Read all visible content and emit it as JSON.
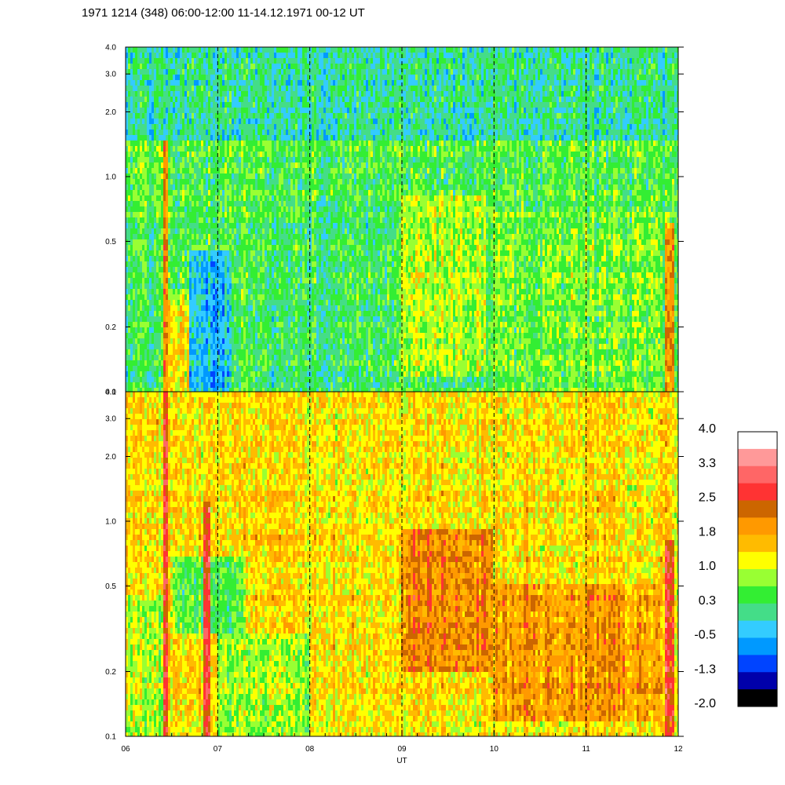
{
  "chart_data": {
    "type": "heatmap",
    "title": "1971 1214 (348) 06:00-12:00 11-14.12.1971  00-12  UT",
    "xlabel": "UT",
    "x_ticks": [
      "06",
      "07",
      "08",
      "09",
      "10",
      "11",
      "12"
    ],
    "xlim": [
      6,
      12
    ],
    "y_scale": "log",
    "panels": [
      {
        "name": "",
        "ylim": [
          0.1,
          4.0
        ],
        "y_ticks": [
          {
            "value": 0.1,
            "label": "0.1"
          },
          {
            "value": 0.2,
            "label": "0.2"
          },
          {
            "value": 0.5,
            "label": "0.5"
          },
          {
            "value": 1.0,
            "label": "1.0"
          },
          {
            "value": 2.0,
            "label": "2.0"
          },
          {
            "value": 3.0,
            "label": "3.0"
          },
          {
            "value": 4.0,
            "label": "4.0"
          }
        ],
        "background_level": 0.4,
        "regions": [
          {
            "x": [
              6.0,
              6.42
            ],
            "y": [
              0.1,
              0.6
            ],
            "level": 0.3
          },
          {
            "x": [
              6.0,
              6.42
            ],
            "y": [
              0.6,
              4.0
            ],
            "level": 0.5
          },
          {
            "x": [
              6.42,
              6.47
            ],
            "y": [
              0.1,
              1.8
            ],
            "level": 2.2
          },
          {
            "x": [
              6.47,
              6.7
            ],
            "y": [
              0.1,
              0.25
            ],
            "level": 1.4
          },
          {
            "x": [
              6.47,
              6.7
            ],
            "y": [
              0.25,
              0.3
            ],
            "level": 0.8
          },
          {
            "x": [
              6.7,
              7.15
            ],
            "y": [
              0.1,
              0.45
            ],
            "level": -0.4
          },
          {
            "x": [
              7.3,
              8.0
            ],
            "y": [
              0.1,
              0.6
            ],
            "level": 0.3
          },
          {
            "x": [
              8.0,
              9.0
            ],
            "y": [
              0.1,
              0.8
            ],
            "level": 0.3
          },
          {
            "x": [
              9.0,
              9.9
            ],
            "y": [
              0.12,
              0.8
            ],
            "level": 0.9
          },
          {
            "x": [
              10.0,
              11.9
            ],
            "y": [
              0.1,
              0.7
            ],
            "level": 0.6
          },
          {
            "x": [
              6.0,
              12.0
            ],
            "y": [
              1.5,
              4.0
            ],
            "level": 0.0
          },
          {
            "x": [
              11.85,
              11.95
            ],
            "y": [
              0.1,
              0.6
            ],
            "level": 1.8
          }
        ]
      },
      {
        "name": "",
        "ylim": [
          0.1,
          4.0
        ],
        "y_ticks": [
          {
            "value": 0.1,
            "label": "0.1"
          },
          {
            "value": 0.2,
            "label": "0.2"
          },
          {
            "value": 0.5,
            "label": "0.5"
          },
          {
            "value": 1.0,
            "label": "1.0"
          },
          {
            "value": 2.0,
            "label": "2.0"
          },
          {
            "value": 3.0,
            "label": "3.0"
          },
          {
            "value": 4.0,
            "label": "4.0"
          }
        ],
        "background_level": 1.4,
        "regions": [
          {
            "x": [
              6.0,
              6.42
            ],
            "y": [
              0.1,
              0.45
            ],
            "level": 0.9
          },
          {
            "x": [
              6.42,
              6.47
            ],
            "y": [
              0.1,
              4.0
            ],
            "level": 2.6
          },
          {
            "x": [
              6.5,
              7.3
            ],
            "y": [
              0.3,
              0.7
            ],
            "level": 0.5
          },
          {
            "x": [
              6.85,
              6.92
            ],
            "y": [
              0.1,
              1.2
            ],
            "level": 2.6
          },
          {
            "x": [
              7.0,
              8.0
            ],
            "y": [
              0.1,
              0.3
            ],
            "level": 0.8
          },
          {
            "x": [
              7.3,
              8.3
            ],
            "y": [
              0.7,
              0.85
            ],
            "level": 1.5
          },
          {
            "x": [
              9.0,
              10.0
            ],
            "y": [
              0.2,
              0.9
            ],
            "level": 2.1
          },
          {
            "x": [
              10.0,
              11.8
            ],
            "y": [
              0.12,
              0.5
            ],
            "level": 1.9
          },
          {
            "x": [
              11.85,
              11.97
            ],
            "y": [
              0.1,
              0.8
            ],
            "level": 2.6
          }
        ]
      }
    ],
    "colorbar": {
      "min": -2.0,
      "max": 4.0,
      "labels": [
        "4.0",
        "3.3",
        "2.5",
        "1.8",
        "1.0",
        "0.3",
        "-0.5",
        "-1.3",
        "-2.0"
      ],
      "colors": [
        "#ffffff",
        "#ff9999",
        "#ff6666",
        "#ff3333",
        "#cc6600",
        "#ff9900",
        "#ffbb00",
        "#ffff00",
        "#99ff33",
        "#33ee33",
        "#44dd88",
        "#33ccff",
        "#0099ff",
        "#0044ff",
        "#0000aa",
        "#000000"
      ]
    },
    "grid": "dashed vertical lines at each hour"
  }
}
